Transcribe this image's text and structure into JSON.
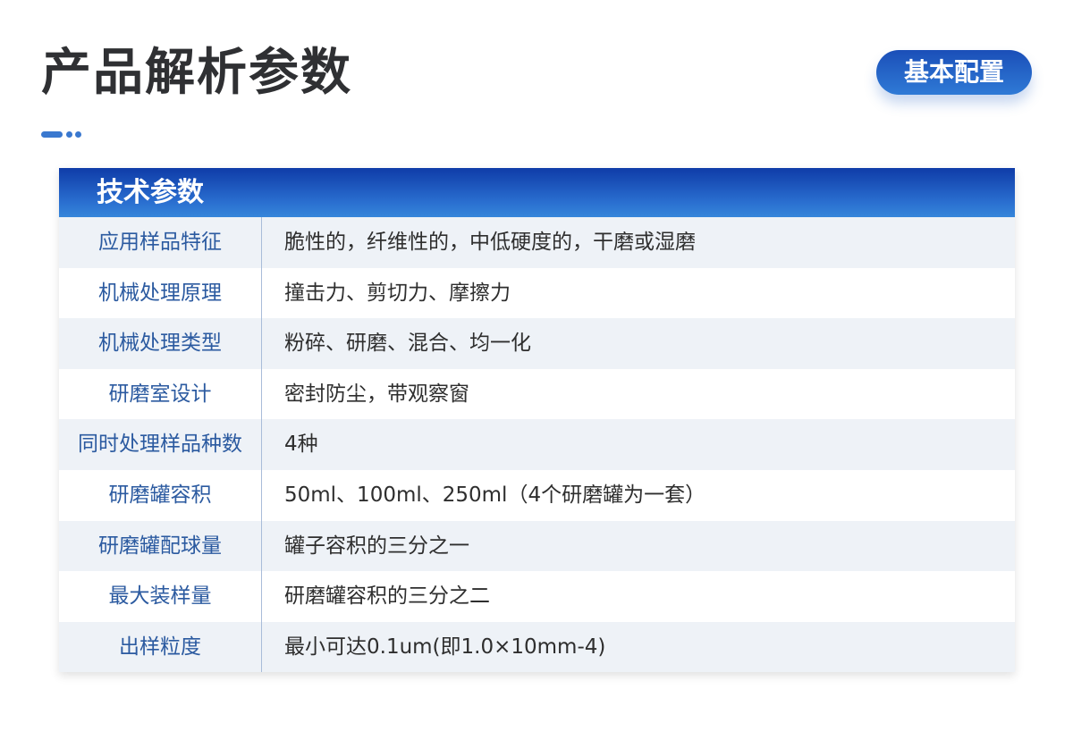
{
  "header": {
    "title": "产品解析参数",
    "badge": "基本配置"
  },
  "colors": {
    "accent": "#2a6fd0",
    "label": "#2b5aa0"
  },
  "table": {
    "title": "技术参数",
    "rows": [
      {
        "label": "应用样品特征",
        "value": "脆性的，纤维性的，中低硬度的，干磨或湿磨"
      },
      {
        "label": "机械处理原理",
        "value": "撞击力、剪切力、摩擦力"
      },
      {
        "label": "机械处理类型",
        "value": "粉碎、研磨、混合、均一化"
      },
      {
        "label": "研磨室设计",
        "value": "密封防尘，带观察窗"
      },
      {
        "label": "同时处理样品种数",
        "value": "4种"
      },
      {
        "label": "研磨罐容积",
        "value": "50ml、100ml、250ml（4个研磨罐为一套）"
      },
      {
        "label": "研磨罐配球量",
        "value": "罐子容积的三分之一"
      },
      {
        "label": "最大装样量",
        "value": "研磨罐容积的三分之二"
      },
      {
        "label": "出样粒度",
        "value": "最小可达0.1um(即1.0×10mm-4)"
      }
    ]
  }
}
